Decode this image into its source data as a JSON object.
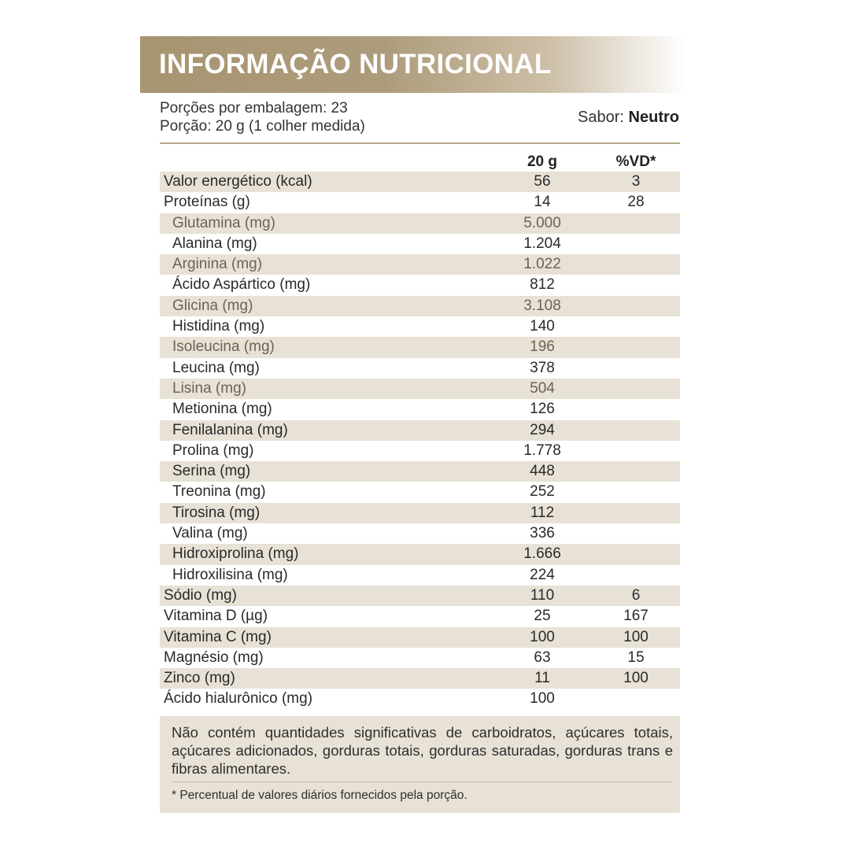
{
  "header": {
    "title": "INFORMAÇÃO NUTRICIONAL"
  },
  "info": {
    "servings_per_package": "Porções por embalagem: 23",
    "serving_size": "Porção: 20 g (1 colher medida)",
    "flavor_label": "Sabor:",
    "flavor_value": "Neutro"
  },
  "table": {
    "columns": [
      "20 g",
      "%VD*"
    ],
    "rows": [
      {
        "name": "Valor energético (kcal)",
        "value": "56",
        "vd": "3"
      },
      {
        "name": "Proteínas (g)",
        "value": "14",
        "vd": "28"
      },
      {
        "name": "Glutamina (mg)",
        "value": "5.000",
        "vd": ""
      },
      {
        "name": "Alanina (mg)",
        "value": "1.204",
        "vd": ""
      },
      {
        "name": "Arginina (mg)",
        "value": "1.022",
        "vd": ""
      },
      {
        "name": "Ácido Aspártico (mg)",
        "value": "812",
        "vd": ""
      },
      {
        "name": "Glicina (mg)",
        "value": "3.108",
        "vd": ""
      },
      {
        "name": "Histidina (mg)",
        "value": "140",
        "vd": ""
      },
      {
        "name": "Isoleucina (mg)",
        "value": "196",
        "vd": ""
      },
      {
        "name": "Leucina (mg)",
        "value": "378",
        "vd": ""
      },
      {
        "name": "Lisina (mg)",
        "value": "504",
        "vd": ""
      },
      {
        "name": "Metionina (mg)",
        "value": "126",
        "vd": ""
      },
      {
        "name": "Fenilalanina (mg)",
        "value": "294",
        "vd": ""
      },
      {
        "name": "Prolina (mg)",
        "value": "1.778",
        "vd": ""
      },
      {
        "name": "Serina (mg)",
        "value": "448",
        "vd": ""
      },
      {
        "name": "Treonina (mg)",
        "value": "252",
        "vd": ""
      },
      {
        "name": "Tirosina (mg)",
        "value": "112",
        "vd": ""
      },
      {
        "name": "Valina (mg)",
        "value": "336",
        "vd": ""
      },
      {
        "name": "Hidroxiprolina (mg)",
        "value": "1.666",
        "vd": ""
      },
      {
        "name": "Hidroxilisina (mg)",
        "value": "224",
        "vd": ""
      },
      {
        "name": "Sódio (mg)",
        "value": "110",
        "vd": "6"
      },
      {
        "name": "Vitamina D (µg)",
        "value": "25",
        "vd": "167"
      },
      {
        "name": "Vitamina C (mg)",
        "value": "100",
        "vd": "100"
      },
      {
        "name": "Magnésio (mg)",
        "value": "63",
        "vd": "15"
      },
      {
        "name": "Zinco (mg)",
        "value": "11",
        "vd": "100"
      },
      {
        "name": "Ácido hialurônico (mg)",
        "value": "100",
        "vd": ""
      }
    ]
  },
  "notes": {
    "disclaimer": "Não contém quantidades significativas de carboidratos, açúcares totais, açúcares adicionados, gorduras totais, gorduras saturadas, gorduras trans e fibras alimentares.",
    "footnote": "* Percentual de valores diários fornecidos pela porção."
  },
  "colors": {
    "header_gold": "#a79471",
    "row_shade": "#e8e1d6",
    "divider": "#b5a88c"
  }
}
